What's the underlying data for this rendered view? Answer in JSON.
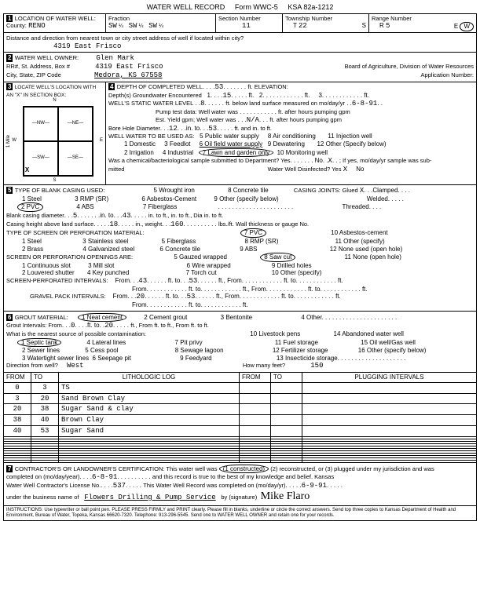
{
  "form": {
    "title": "WATER WELL RECORD",
    "form_no": "Form WWC-5",
    "ksa": "KSA 82a-1212"
  },
  "header": {
    "county_label": "County:",
    "county": "RENO",
    "fraction_label": "Fraction",
    "fraction1": "SW",
    "fraction1_sub": "¼",
    "fraction2": "SW",
    "fraction2_sub": "¼",
    "fraction3": "SW",
    "fraction3_sub": "¼",
    "section_label": "Section Number",
    "section": "11",
    "township_label": "Township Number",
    "township": "22",
    "township_dir": "S",
    "range_label": "Range Number",
    "range": "5",
    "range_dir": "W",
    "dist_label": "Distance and direction from nearest town or city street address of well if located within city?",
    "dist": "4319 East Frisco"
  },
  "owner": {
    "label": "WATER WELL OWNER:",
    "name": "Glen Mark",
    "addr_label": "RR#, St. Address, Box #",
    "addr": "4319 East Frisco",
    "city_label": "City, State, ZIP Code",
    "city": "Medora, KS  67558",
    "board": "Board of Agriculture, Division of Water Resources",
    "app_label": "Application Number:"
  },
  "location_box": {
    "label": "LOCATE WELL'S LOCATION WITH AN \"X\" IN SECTION BOX:",
    "n": "N",
    "s": "S",
    "e": "E",
    "w": "W",
    "nw": "NW",
    "ne": "NE",
    "sw": "SW",
    "se": "SE",
    "mile": "1 Mile",
    "x": "X"
  },
  "depth": {
    "completed_label": "DEPTH OF COMPLETED WELL",
    "completed": "53",
    "elev_label": "ft. ELEVATION:",
    "gw_label": "Depth(s) Groundwater Encountered",
    "gw1": "1",
    "gw1v": "15",
    "gw2": "2",
    "gw3": "3",
    "static_label": "WELL'S STATIC WATER LEVEL",
    "static": "8",
    "static_tail": "ft. below land surface measured on mo/day/yr",
    "static_date": "6-8-91",
    "pump_label": "Pump test data:  Well water was",
    "pump_tail": "ft. after             hours pumping            gpm",
    "est_label": "Est. Yield            gpm; Well water was",
    "est_na": "N/A",
    "est_tail": "ft. after             hours pumping            gpm",
    "bore_label": "Bore Hole Diameter",
    "bore_d": "12",
    "bore_to": "53",
    "bore_tail": "ft. and            in. to            ft.",
    "use_label": "WELL WATER TO BE USED AS:",
    "u1": "1 Domestic",
    "u2": "2 Irrigation",
    "u3": "3 Feedlot",
    "u4": "4 Industrial",
    "u5": "5 Public water supply",
    "u6": "6 Oil field water supply",
    "u7": "7 Lawn and garden only",
    "u8": "8 Air conditioning",
    "u9": "9 Dewatering",
    "u10": "10 Monitoring well",
    "u11": "11 Injection well",
    "u12": "12 Other (Specify below)",
    "chem_label": "Was a chemical/bacteriological sample submitted to Department? Yes",
    "chem_no": "No",
    "chem_x": "X",
    "chem_tail": "; If yes, mo/day/yr sample was sub-",
    "mitted": "mitted",
    "disinfect_label": "Water Well Disinfected?  Yes",
    "dis_x": "X",
    "dis_no": "No"
  },
  "casing": {
    "label": "TYPE OF BLANK CASING USED:",
    "c1": "1 Steel",
    "c2": "2 PVC",
    "c3": "3 RMP (SR)",
    "c4": "4 ABS",
    "c5": "5 Wrought iron",
    "c6": "6 Asbestos-Cement",
    "c7": "7 Fiberglass",
    "c8": "8 Concrete tile",
    "c9": "9 Other (specify below)",
    "joints_label": "CASING JOINTS: Glued",
    "joints_x": "X",
    "joints_tail": "Clamped",
    "welded": "Welded",
    "threaded": "Threaded",
    "dia_label": "Blank casing diameter",
    "dia": "5",
    "dia_to": "43",
    "dia_tail": "in. to            ft.,           in. to           ft., Dia           in. to           ft.",
    "height_label": "Casing height above land surface",
    "height": "18",
    "weight_label": "in., weight",
    "weight": "160",
    "height_tail": "lbs./ft. Wall thickness or gauge No.",
    "screen_label": "TYPE OF SCREEN OR PERFORATION MATERIAL:",
    "s1": "1 Steel",
    "s2": "2 Brass",
    "s3": "3 Stainless steel",
    "s4": "4 Galvanized steel",
    "s5": "5 Fiberglass",
    "s6": "6 Concrete tile",
    "s7": "7 PVC",
    "s8": "8 RMP (SR)",
    "s9": "9 ABS",
    "s10": "10 Asbestos-cement",
    "s11": "11 Other (specify)",
    "s12": "12 None used (open hole)",
    "open_label": "SCREEN OR PERFORATION OPENINGS ARE:",
    "o1": "1 Continuous slot",
    "o2": "2 Louvered shutter",
    "o3": "3 Mill slot",
    "o4": "4 Key punched",
    "o5": "5 Gauzed wrapped",
    "o6": "6 Wire wrapped",
    "o7": "7 Torch cut",
    "o8": "8 Saw cut",
    "o9": "9 Drilled holes",
    "o10": "10 Other (specify)",
    "o11": "11 None (open hole)",
    "perf_label": "SCREEN-PERFORATED INTERVALS:",
    "perf_from": "43",
    "perf_to": "53",
    "from_txt": "From",
    "to_txt": "ft. to",
    "ft_txt": "ft., From",
    "gravel_label": "GRAVEL PACK INTERVALS:",
    "gravel_from": "20",
    "gravel_to": "53"
  },
  "grout": {
    "label": "GROUT MATERIAL:",
    "g1": "1 Neat cement",
    "g2": "2 Cement grout",
    "g3": "3 Bentonite",
    "g4": "4 Other",
    "intervals_label": "Grout Intervals:  From",
    "int_from": "0",
    "int_to": "20",
    "int_tail": "ft.,  From                ft. to              ft.,  From                 ft. to                ft.",
    "contam_label": "What is the nearest source of possible contamination:",
    "p1": "1 Septic tank",
    "p2": "2 Sewer lines",
    "p3": "3 Watertight sewer lines",
    "p4": "4 Lateral lines",
    "p5": "5 Cess pool",
    "p6": "6 Seepage pit",
    "p7": "7 Pit privy",
    "p8": "8 Sewage lagoon",
    "p9": "9 Feedyard",
    "p10": "10 Livestock pens",
    "p11": "11 Fuel storage",
    "p12": "12 Fertilizer storage",
    "p13": "13 Insecticide storage",
    "p14": "14 Abandoned water well",
    "p15": "15 Oil well/Gas well",
    "p16": "16 Other (specify below)",
    "dir_label": "Direction from well?",
    "dir": "West",
    "feet_label": "How many feet?",
    "feet": "150"
  },
  "log": {
    "h_from": "FROM",
    "h_to": "TO",
    "h_lith": "LITHOLOGIC LOG",
    "h_from2": "FROM",
    "h_to2": "TO",
    "h_plug": "PLUGGING INTERVALS",
    "rows": [
      {
        "from": "0",
        "to": "3",
        "lith": "TS"
      },
      {
        "from": "3",
        "to": "20",
        "lith": "Sand Brown Clay"
      },
      {
        "from": "20",
        "to": "38",
        "lith": "Sugar Sand & clay"
      },
      {
        "from": "38",
        "to": "40",
        "lith": "Brown Clay"
      },
      {
        "from": "40",
        "to": "53",
        "lith": "Sugar Sand"
      }
    ]
  },
  "cert": {
    "label": "CONTRACTOR'S OR LANDOWNER'S CERTIFICATION: This water well was",
    "opt1": "1 constructed",
    "opt_tail": "(2) reconstructed, or (3) plugged under my jurisdiction and was",
    "completed_label": "completed on (mo/day/year)",
    "completed": "6-8-91",
    "rec_tail": "and this record is true to the best of my knowledge and belief. Kansas",
    "lic_label": "Water Well Contractor's License No.",
    "lic": "537",
    "rec_label": "This Water Well Record was completed on (mo/day/yr)",
    "rec_date": "6-9-91",
    "biz_label": "under the business name of",
    "biz": "Flowers Drilling & Pump Service",
    "sig_label": "by (signature)",
    "sig": "Mike Flaro"
  },
  "instructions": "INSTRUCTIONS: Use typewriter or ball point pen. PLEASE PRESS FIRMLY and PRINT clearly. Please fill in blanks, underline or circle the correct answers. Send top three copies to Kansas Department of Health and Environment, Bureau of Water, Topeka, Kansas 66620-7320. Telephone: 913-296-5545. Send one to WATER WELL OWNER and retain one for your records."
}
